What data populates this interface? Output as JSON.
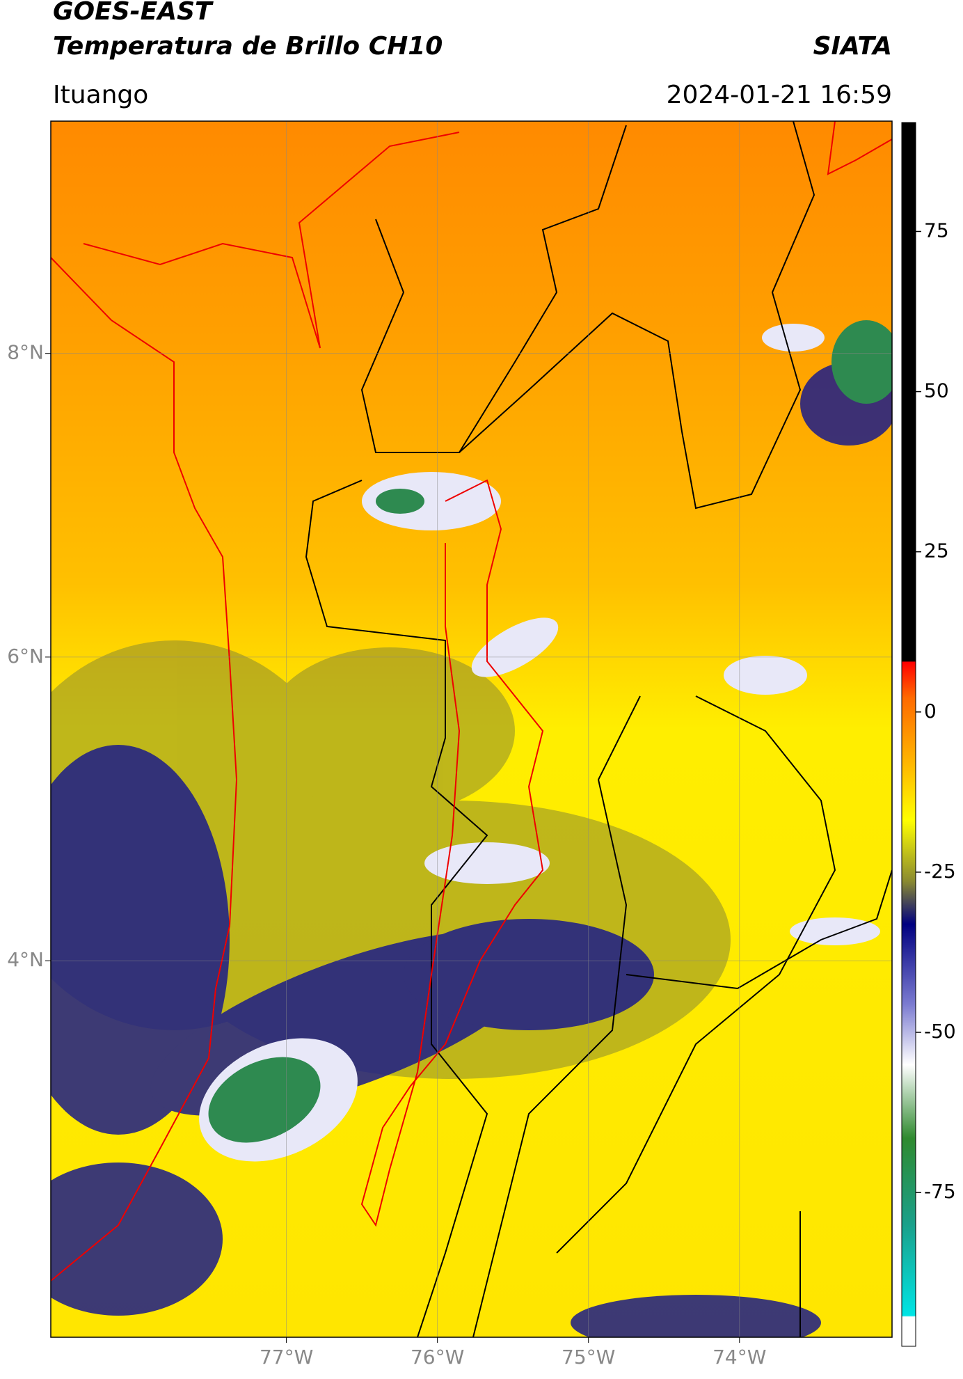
{
  "header": {
    "title": "GOES-EAST",
    "subtitle": "Temperatura de Brillo CH10",
    "brand": "SIATA",
    "location": "Ituango",
    "datetime": "2024-01-21 16:59"
  },
  "map": {
    "xlim": [
      -78.56,
      -72.99
    ],
    "ylim": [
      1.52,
      9.53
    ],
    "xticks": [
      {
        "value": -77,
        "label": "77°W"
      },
      {
        "value": -76,
        "label": "76°W"
      },
      {
        "value": -75,
        "label": "75°W"
      },
      {
        "value": -74,
        "label": "74°W"
      }
    ],
    "yticks": [
      {
        "value": 8,
        "label": "8°N"
      },
      {
        "value": 6,
        "label": "6°N"
      },
      {
        "value": 4,
        "label": "4°N"
      }
    ],
    "grid": true
  },
  "colorbar": {
    "lim": [
      -99,
      92
    ],
    "ticks": [
      75,
      50,
      25,
      0,
      -25,
      -50,
      -75
    ]
  }
}
